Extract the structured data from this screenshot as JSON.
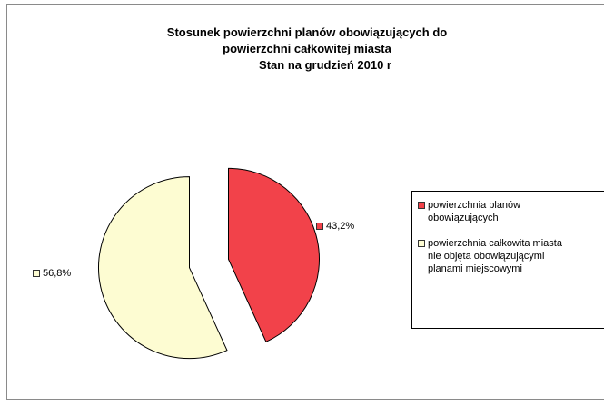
{
  "chart_data": {
    "type": "pie",
    "title_lines": [
      "Stosunek powierzchni planów obowiązujących do",
      "powierzchni całkowitej miasta",
      "Stan na grudzień 2010 r"
    ],
    "slices": [
      {
        "label_lines": [
          "powierzchnia planów",
          "obowiązujących"
        ],
        "value": 43.2,
        "display": "43,2%",
        "color": "#f2424a"
      },
      {
        "label_lines": [
          "powierzchnia całkowita miasta",
          "nie objęta obowiązującymi",
          "planami miejscowymi"
        ],
        "value": 56.8,
        "display": "56,8%",
        "color": "#fdfcd2"
      }
    ],
    "legend_placement": "right",
    "exploded": true
  }
}
